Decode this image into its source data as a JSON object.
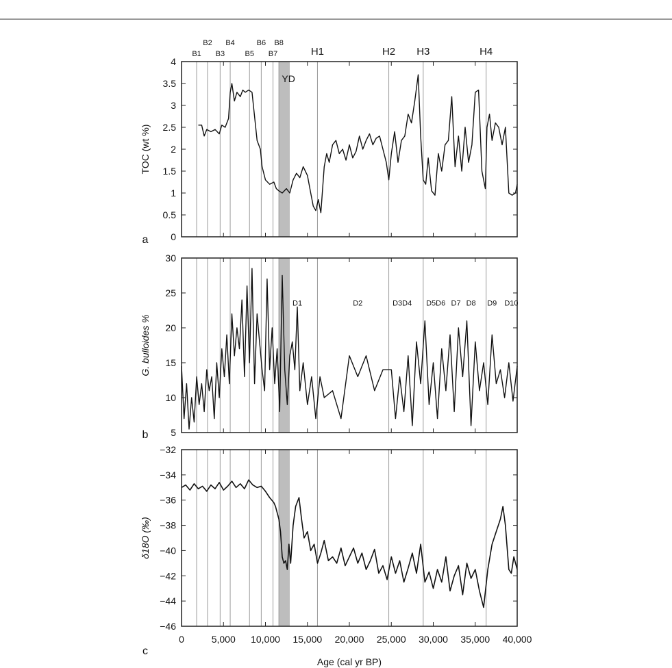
{
  "chart_data": [
    {
      "type": "line",
      "panel_label": "a",
      "ylabel": "TOC (wt %)",
      "ylim": [
        0,
        4
      ],
      "yticks": [
        "0",
        "0.5",
        "1",
        "1.5",
        "2",
        "2.5",
        "3",
        "3.5",
        "4"
      ],
      "xlim": [
        0,
        40000
      ],
      "shaded_band": {
        "label": "YD",
        "from": 11600,
        "to": 12900
      },
      "event_lines": [
        {
          "label": "B1",
          "x": 1800
        },
        {
          "label": "B2",
          "x": 3100
        },
        {
          "label": "B3",
          "x": 4600
        },
        {
          "label": "B4",
          "x": 5800
        },
        {
          "label": "B5",
          "x": 8100
        },
        {
          "label": "B6",
          "x": 9500
        },
        {
          "label": "B7",
          "x": 10900
        },
        {
          "label": "B8",
          "x": 11600
        },
        {
          "label": "H1",
          "x": 16200
        },
        {
          "label": "H2",
          "x": 24700
        },
        {
          "label": "H3",
          "x": 28800
        },
        {
          "label": "H4",
          "x": 36300
        }
      ],
      "series": [
        {
          "x": [
            2000,
            2400,
            2700,
            3000,
            3500,
            4000,
            4500,
            4800,
            5200,
            5600,
            5800,
            6000,
            6300,
            6600,
            7000,
            7300,
            7600,
            8000,
            8400,
            9000,
            9400,
            9600,
            10000,
            10500,
            11000,
            11300,
            11600,
            12000,
            12500,
            12900,
            13300,
            13700,
            14100,
            14500,
            15000,
            15400,
            15700,
            16000,
            16300,
            16600,
            17000,
            17300,
            17600,
            18000,
            18400,
            18800,
            19200,
            19600,
            20000,
            20400,
            20800,
            21200,
            21600,
            22000,
            22400,
            22800,
            23200,
            23600,
            24000,
            24400,
            24700,
            25000,
            25400,
            25800,
            26200,
            26600,
            27000,
            27400,
            27800,
            28200,
            28500,
            28800,
            29100,
            29400,
            29800,
            30200,
            30600,
            31000,
            31400,
            31800,
            32200,
            32600,
            33000,
            33400,
            33800,
            34200,
            34600,
            35000,
            35400,
            35800,
            36200,
            36400,
            36700,
            37000,
            37400,
            37800,
            38200,
            38600,
            39000,
            39400,
            39800,
            40000
          ],
          "values": [
            2.55,
            2.55,
            2.3,
            2.45,
            2.4,
            2.45,
            2.35,
            2.55,
            2.5,
            2.7,
            3.3,
            3.5,
            3.1,
            3.3,
            3.2,
            3.35,
            3.3,
            3.35,
            3.3,
            2.2,
            2.0,
            1.6,
            1.3,
            1.2,
            1.25,
            1.1,
            1.05,
            1.0,
            1.1,
            1.0,
            1.3,
            1.45,
            1.35,
            1.6,
            1.4,
            1.0,
            0.7,
            0.6,
            0.85,
            0.55,
            1.6,
            1.9,
            1.7,
            2.1,
            2.2,
            1.9,
            2.0,
            1.75,
            2.1,
            1.8,
            1.95,
            2.3,
            2.0,
            2.2,
            2.35,
            2.1,
            2.25,
            2.3,
            2.0,
            1.7,
            1.3,
            1.9,
            2.4,
            1.7,
            2.2,
            2.3,
            2.8,
            2.6,
            3.1,
            3.7,
            2.3,
            1.3,
            1.2,
            1.8,
            1.05,
            0.95,
            1.9,
            1.5,
            2.1,
            2.2,
            3.2,
            1.6,
            2.3,
            1.5,
            2.5,
            1.7,
            2.1,
            3.3,
            3.35,
            1.5,
            1.1,
            2.5,
            2.8,
            2.2,
            2.6,
            2.5,
            2.1,
            2.5,
            1.0,
            0.95,
            1.0,
            1.2
          ]
        }
      ]
    },
    {
      "type": "line",
      "panel_label": "b",
      "ylabel": "G. bulloides %",
      "ylim": [
        5,
        30
      ],
      "yticks": [
        "5",
        "10",
        "15",
        "20",
        "25",
        "30"
      ],
      "xlim": [
        0,
        40000
      ],
      "shaded_band": {
        "from": 11600,
        "to": 12900
      },
      "event_lines": [
        {
          "label": "",
          "x": 1800
        },
        {
          "label": "",
          "x": 3100
        },
        {
          "label": "",
          "x": 4600
        },
        {
          "label": "",
          "x": 5800
        },
        {
          "label": "",
          "x": 8100
        },
        {
          "label": "",
          "x": 9500
        },
        {
          "label": "",
          "x": 10900
        },
        {
          "label": "",
          "x": 11600
        },
        {
          "label": "",
          "x": 16200
        },
        {
          "label": "",
          "x": 24700
        },
        {
          "label": "",
          "x": 28800
        },
        {
          "label": "",
          "x": 36300
        }
      ],
      "annotations": [
        {
          "label": "D1",
          "x": 13800,
          "y": 23.2
        },
        {
          "label": "D2",
          "x": 21000,
          "y": 23.2
        },
        {
          "label": "D3D4",
          "x": 26300,
          "y": 23.2
        },
        {
          "label": "D5D6",
          "x": 30300,
          "y": 23.2
        },
        {
          "label": "D7",
          "x": 32700,
          "y": 23.2
        },
        {
          "label": "D8",
          "x": 34500,
          "y": 23.2
        },
        {
          "label": "D9",
          "x": 37000,
          "y": 23.2
        },
        {
          "label": "D10",
          "x": 39300,
          "y": 23.2
        }
      ],
      "series": [
        {
          "x": [
            0,
            300,
            600,
            900,
            1200,
            1500,
            1800,
            2100,
            2400,
            2700,
            3000,
            3300,
            3600,
            3900,
            4200,
            4500,
            4800,
            5100,
            5400,
            5700,
            6000,
            6300,
            6600,
            6900,
            7200,
            7500,
            7800,
            8100,
            8400,
            8700,
            9000,
            9300,
            9600,
            9900,
            10200,
            10500,
            10800,
            11100,
            11400,
            11700,
            12000,
            12300,
            12600,
            12900,
            13200,
            13500,
            13800,
            14100,
            14500,
            15000,
            15500,
            16000,
            16500,
            17000,
            18000,
            19000,
            20000,
            21000,
            22000,
            23000,
            24000,
            24500,
            25000,
            25500,
            26000,
            26500,
            27000,
            27500,
            28000,
            28500,
            29000,
            29500,
            30000,
            30500,
            31000,
            31500,
            32000,
            32500,
            33000,
            33500,
            34000,
            34500,
            35000,
            35500,
            36000,
            36500,
            37000,
            37500,
            38000,
            38500,
            39000,
            39500,
            40000
          ],
          "values": [
            14.5,
            7,
            12,
            5.5,
            10,
            6.5,
            13,
            9,
            12,
            8,
            14,
            11,
            13,
            7,
            15,
            10,
            17,
            13,
            19,
            12,
            22,
            16,
            20,
            17,
            24,
            13,
            26,
            15,
            28.5,
            12,
            22,
            18,
            14,
            11,
            27,
            14,
            20,
            12,
            17,
            8,
            27.5,
            14,
            9,
            16,
            18,
            14,
            23,
            11,
            15,
            9,
            13,
            7,
            13,
            10,
            11,
            7,
            16,
            13,
            16,
            11,
            14,
            14,
            14,
            7,
            13,
            8,
            16,
            6,
            18,
            12,
            21,
            9,
            15,
            7,
            17,
            11,
            19,
            8,
            20,
            13,
            21,
            6,
            18,
            11,
            15,
            9,
            19,
            12,
            14,
            10,
            15,
            9.5,
            14.5
          ]
        }
      ]
    },
    {
      "type": "line",
      "panel_label": "c",
      "ylabel": "δ18O (‰)",
      "ylim": [
        -46,
        -32
      ],
      "yticks": [
        "−32",
        "−34",
        "−36",
        "−38",
        "−40",
        "−42",
        "−44",
        "−46"
      ],
      "xlim": [
        0,
        40000
      ],
      "xticks": [
        "0",
        "5,000",
        "10,000",
        "15,000",
        "20,000",
        "25,000",
        "30,000",
        "35,000",
        "40,000"
      ],
      "xlabel": "Age (cal yr BP)",
      "shaded_band": {
        "from": 11600,
        "to": 12900
      },
      "event_lines": [
        {
          "label": "",
          "x": 1800
        },
        {
          "label": "",
          "x": 3100
        },
        {
          "label": "",
          "x": 4600
        },
        {
          "label": "",
          "x": 5800
        },
        {
          "label": "",
          "x": 8100
        },
        {
          "label": "",
          "x": 9500
        },
        {
          "label": "",
          "x": 10900
        },
        {
          "label": "",
          "x": 11600
        },
        {
          "label": "",
          "x": 16200
        },
        {
          "label": "",
          "x": 24700
        },
        {
          "label": "",
          "x": 28800
        },
        {
          "label": "",
          "x": 36300
        }
      ],
      "series": [
        {
          "x": [
            0,
            500,
            1000,
            1500,
            2000,
            2500,
            3000,
            3500,
            4000,
            4500,
            5000,
            5500,
            6000,
            6500,
            7000,
            7500,
            8000,
            8500,
            9000,
            9500,
            10000,
            10500,
            11000,
            11200,
            11400,
            11600,
            11800,
            12000,
            12200,
            12400,
            12600,
            12800,
            13000,
            13300,
            13600,
            14000,
            14300,
            14600,
            15000,
            15400,
            15800,
            16200,
            16600,
            17000,
            17500,
            18000,
            18500,
            19000,
            19500,
            20000,
            20500,
            21000,
            21500,
            22000,
            22500,
            23000,
            23500,
            24000,
            24500,
            25000,
            25500,
            26000,
            26500,
            27000,
            27500,
            28000,
            28500,
            29000,
            29500,
            30000,
            30500,
            31000,
            31500,
            32000,
            32500,
            33000,
            33500,
            34000,
            34500,
            35000,
            35500,
            36000,
            36500,
            37000,
            37500,
            38000,
            38300,
            38600,
            39000,
            39300,
            39600,
            40000
          ],
          "values": [
            -35,
            -34.8,
            -35.2,
            -34.7,
            -35.1,
            -34.9,
            -35.3,
            -34.8,
            -35.1,
            -34.6,
            -35.2,
            -34.9,
            -34.5,
            -35,
            -34.7,
            -35.1,
            -34.4,
            -34.8,
            -35,
            -34.9,
            -35.3,
            -35.8,
            -36.2,
            -36.5,
            -37,
            -37.5,
            -38.5,
            -40.5,
            -41,
            -40.8,
            -41.5,
            -39.5,
            -41,
            -38,
            -36.5,
            -35.8,
            -37.5,
            -39,
            -38.5,
            -40,
            -39.5,
            -41,
            -40.2,
            -39.2,
            -40.8,
            -40.5,
            -41,
            -39.8,
            -41.2,
            -40.5,
            -39.8,
            -41,
            -40.2,
            -41.5,
            -40.8,
            -39.9,
            -41.8,
            -41.2,
            -42.3,
            -40.5,
            -41.8,
            -40.8,
            -42.5,
            -41.4,
            -40.2,
            -41.8,
            -39.5,
            -42.5,
            -41.7,
            -43,
            -41.5,
            -42.5,
            -40.5,
            -43.2,
            -42,
            -41.2,
            -43.5,
            -41,
            -42.2,
            -41.5,
            -43.2,
            -44.5,
            -41.5,
            -39.5,
            -38.5,
            -37.5,
            -36.5,
            -38,
            -41.5,
            -41.8,
            -40.5,
            -41.5
          ]
        }
      ]
    }
  ]
}
